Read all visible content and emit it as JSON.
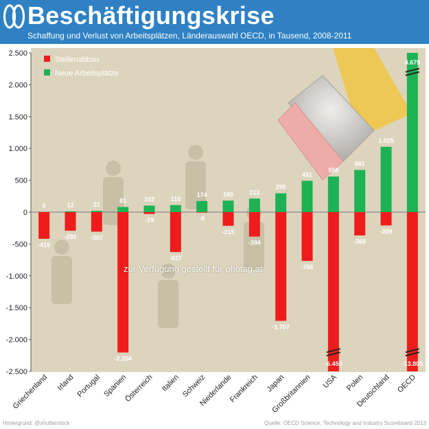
{
  "header": {
    "title": "Beschäftigungskrise",
    "subtitle": "Schaffung und Verlust von Arbeitsplätzen, Länderauswahl OECD, in Tausend, 2008-2011"
  },
  "colors": {
    "header_bg": "#2f81c3",
    "loss": "#ee1c1c",
    "gain": "#1db254"
  },
  "watermark": "zur Verfügung gestellt für photag.at",
  "footer": {
    "left": "Hintergrund: @shutterstock",
    "right": "Quelle: OECD Science, Technology and Industry Scoreboard 2013"
  },
  "chart_data": {
    "type": "bar",
    "categories": [
      "Griechenland",
      "Irland",
      "Portugal",
      "Spanien",
      "Österreich",
      "Italien",
      "Schweiz",
      "Niederlande",
      "Frankreich",
      "Japan",
      "Großbritannien",
      "USA",
      "Polen",
      "Deutschland",
      "OECD"
    ],
    "series": [
      {
        "name": "Stellenabbau",
        "values": [
          -419,
          -292,
          -307,
          -2204,
          -29,
          -627,
          -8,
          -215,
          -384,
          -1707,
          -766,
          -6453,
          -366,
          -209,
          -13805
        ],
        "labels": [
          "-419",
          "-292",
          "-307",
          "-2.204",
          "-29",
          "-627",
          "-8",
          "-215",
          "-384",
          "-1.707",
          "-766",
          "-6.453",
          "-366",
          "-209",
          "-13.805"
        ]
      },
      {
        "name": "Neue Arbeitsplätze",
        "values": [
          0,
          12,
          21,
          81,
          102,
          110,
          174,
          180,
          212,
          295,
          491,
          558,
          661,
          1025,
          4679
        ],
        "labels": [
          "0",
          "12",
          "21",
          "81",
          "102",
          "110",
          "174",
          "180",
          "212",
          "295",
          "491",
          "558",
          "661",
          "1.025",
          "4.679"
        ]
      }
    ],
    "ylim": [
      -2500,
      2500
    ],
    "yticks": [
      2500,
      2000,
      1500,
      1000,
      500,
      0,
      -500,
      -1000,
      -1500,
      -2000,
      -2500
    ],
    "ytick_labels": [
      "2.500",
      "2.000",
      "1.500",
      "1.000",
      "500",
      "0",
      "-500",
      "-1.000",
      "-1.500",
      "-2.000",
      "-2.500"
    ],
    "axis_breaks": [
      "USA",
      "OECD"
    ],
    "legend_position": "top-left",
    "grid": false
  }
}
